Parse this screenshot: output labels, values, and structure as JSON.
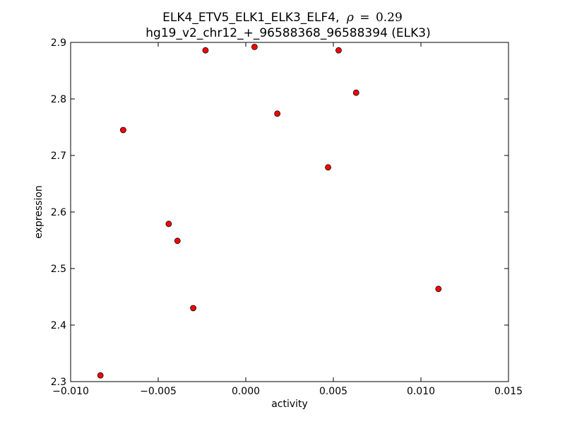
{
  "chart_data": {
    "type": "scatter",
    "title_line1": "ELK4_ETV5_ELK1_ELK3_ELF4,",
    "title_rho_symbol": "ρ",
    "title_rho_equals": "=",
    "title_rho_value": "0.29",
    "title_line2": "hg19_v2_chr12_+_96588368_96588394 (ELK3)",
    "xlabel": "activity",
    "ylabel": "expression",
    "xlim": [
      -0.01,
      0.015
    ],
    "ylim": [
      2.3,
      2.9
    ],
    "xticks": [
      {
        "value": -0.01,
        "label": "−0.010"
      },
      {
        "value": -0.005,
        "label": "−0.005"
      },
      {
        "value": 0.0,
        "label": "0.000"
      },
      {
        "value": 0.005,
        "label": "0.005"
      },
      {
        "value": 0.01,
        "label": "0.010"
      },
      {
        "value": 0.015,
        "label": "0.015"
      }
    ],
    "yticks": [
      {
        "value": 2.3,
        "label": "2.3"
      },
      {
        "value": 2.4,
        "label": "2.4"
      },
      {
        "value": 2.5,
        "label": "2.5"
      },
      {
        "value": 2.6,
        "label": "2.6"
      },
      {
        "value": 2.7,
        "label": "2.7"
      },
      {
        "value": 2.8,
        "label": "2.8"
      },
      {
        "value": 2.9,
        "label": "2.9"
      }
    ],
    "grid": false,
    "marker_color": "#ff0000",
    "marker_edge_color": "#000000",
    "points": [
      {
        "x": -0.0083,
        "y": 2.311
      },
      {
        "x": -0.007,
        "y": 2.745
      },
      {
        "x": -0.0044,
        "y": 2.579
      },
      {
        "x": -0.0039,
        "y": 2.549
      },
      {
        "x": -0.003,
        "y": 2.43
      },
      {
        "x": -0.0023,
        "y": 2.886
      },
      {
        "x": 0.0005,
        "y": 2.892
      },
      {
        "x": 0.0018,
        "y": 2.774
      },
      {
        "x": 0.0047,
        "y": 2.679
      },
      {
        "x": 0.0053,
        "y": 2.886
      },
      {
        "x": 0.0063,
        "y": 2.811
      },
      {
        "x": 0.011,
        "y": 2.464
      }
    ]
  }
}
